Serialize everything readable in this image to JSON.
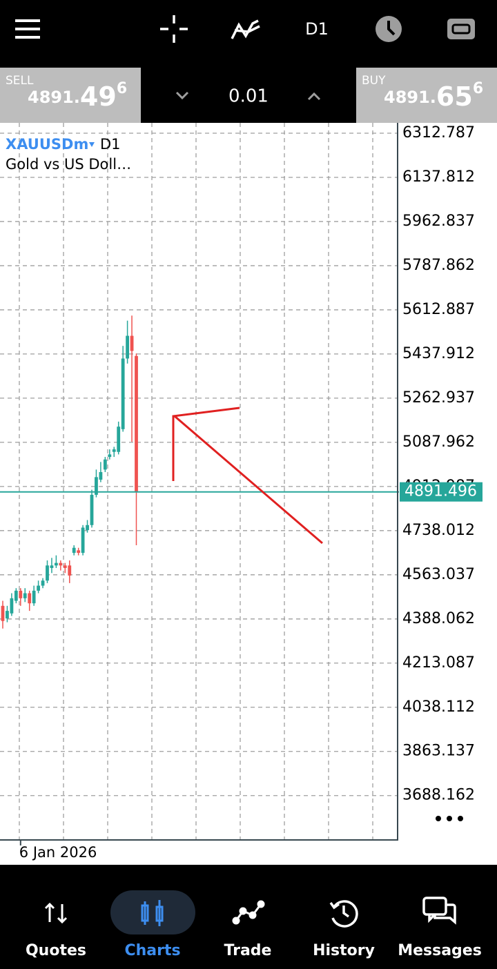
{
  "top_bar": {
    "timeframe": "D1"
  },
  "trade_panel": {
    "sell": {
      "label": "SELL",
      "price_prefix": "4891.",
      "price_big": "49",
      "price_sup": "6"
    },
    "volume": "0.01",
    "buy": {
      "label": "BUY",
      "price_prefix": "4891.",
      "price_big": "65",
      "price_sup": "6"
    }
  },
  "chart_data": {
    "type": "candlestick",
    "symbol": "XAUUSDm",
    "timeframe": "D1",
    "description": "Gold vs US Doll…",
    "categories": [
      null,
      null,
      null,
      null,
      "6 Jan 2026",
      null,
      null,
      null,
      null,
      null,
      null,
      null,
      null,
      null,
      null,
      null,
      null,
      null,
      null,
      null,
      null,
      null,
      null,
      null,
      null,
      null,
      null,
      null,
      null,
      null,
      null
    ],
    "open": [
      4440,
      4390,
      4410,
      4460,
      4500,
      4470,
      4490,
      4450,
      4500,
      4520,
      4540,
      4590,
      4600,
      4610,
      4600,
      4600,
      4650,
      4660,
      4650,
      4740,
      4760,
      4880,
      4940,
      4980,
      5030,
      5050,
      5050,
      5140,
      5420,
      5510,
      5430
    ],
    "high": [
      4460,
      4440,
      4490,
      4510,
      4510,
      4510,
      4500,
      4520,
      4540,
      4550,
      4620,
      4630,
      4640,
      4620,
      4610,
      4620,
      4680,
      4670,
      4760,
      4780,
      4900,
      4980,
      5010,
      5030,
      5060,
      5070,
      5170,
      5470,
      5570,
      5590,
      5440
    ],
    "low": [
      4350,
      4375,
      4400,
      4450,
      4440,
      4455,
      4420,
      4440,
      4490,
      4510,
      4530,
      4570,
      4590,
      4580,
      4570,
      4530,
      4640,
      4640,
      4640,
      4730,
      4750,
      4870,
      4930,
      4970,
      5020,
      5030,
      5040,
      5130,
      5400,
      5090,
      4680
    ],
    "close": [
      4380,
      4420,
      4470,
      4500,
      4470,
      4490,
      4450,
      4500,
      4520,
      4540,
      4600,
      4600,
      4610,
      4600,
      4590,
      4560,
      4670,
      4650,
      4750,
      4760,
      4880,
      4950,
      4970,
      5020,
      5040,
      5060,
      5150,
      5420,
      5510,
      5450,
      4891.496
    ],
    "ylim": [
      3512.4,
      6353.8
    ],
    "yticks": [
      6312.787,
      6137.812,
      5962.837,
      5787.862,
      5612.887,
      5437.912,
      5262.937,
      5087.962,
      4912.987,
      4738.012,
      4563.037,
      4388.062,
      4213.087,
      4038.112,
      3863.137,
      3688.162
    ],
    "current_price": 4891.496,
    "grid": true,
    "up_color": "#26a69a",
    "down_color": "#ef5350"
  },
  "nav": {
    "items": [
      {
        "label": "Quotes",
        "active": false
      },
      {
        "label": "Charts",
        "active": true
      },
      {
        "label": "Trade",
        "active": false
      },
      {
        "label": "History",
        "active": false
      },
      {
        "label": "Messages",
        "active": false
      }
    ]
  }
}
